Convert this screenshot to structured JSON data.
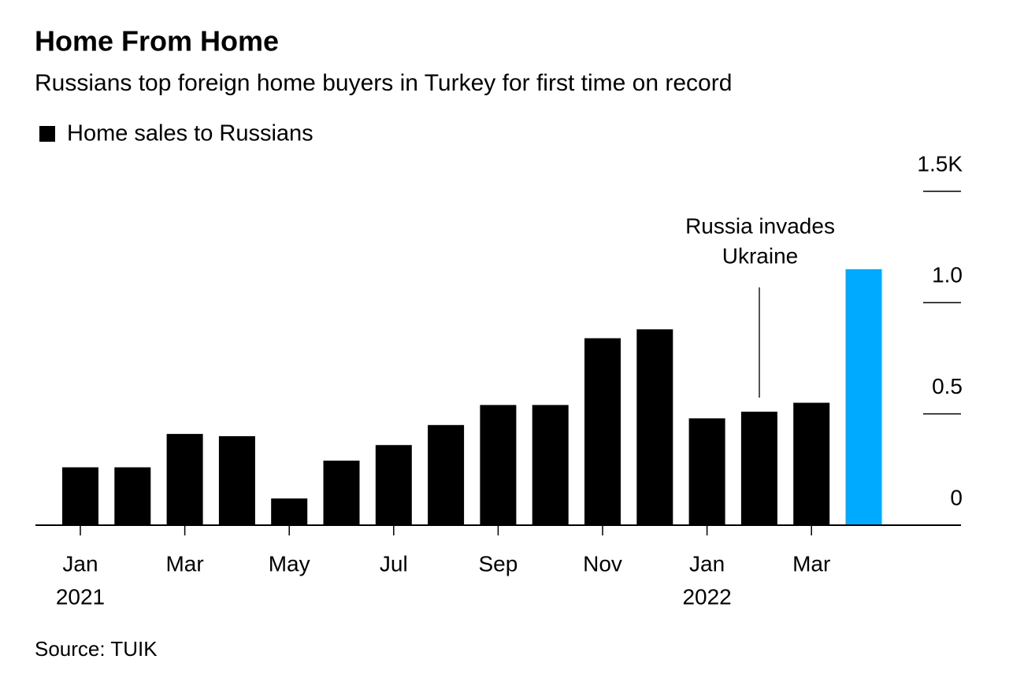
{
  "chart_data": {
    "type": "bar",
    "title": "Home From Home",
    "subtitle": "Russians top foreign home buyers in Turkey for first time on record",
    "source": "Source: TUIK",
    "series_name": "Home sales to Russians",
    "categories": [
      "Jan",
      null,
      "Mar",
      null,
      "May",
      null,
      "Jul",
      null,
      "Sep",
      null,
      "Nov",
      null,
      "Jan",
      null,
      "Mar",
      null
    ],
    "years": [
      "2021",
      null,
      null,
      null,
      null,
      null,
      null,
      null,
      null,
      null,
      null,
      null,
      "2022",
      null,
      null,
      null
    ],
    "values": [
      0.26,
      0.26,
      0.41,
      0.4,
      0.12,
      0.29,
      0.36,
      0.45,
      0.54,
      0.54,
      0.84,
      0.88,
      0.48,
      0.51,
      0.55,
      1.15
    ],
    "colors": [
      "#000000",
      "#000000",
      "#000000",
      "#000000",
      "#000000",
      "#000000",
      "#000000",
      "#000000",
      "#000000",
      "#000000",
      "#000000",
      "#000000",
      "#000000",
      "#000000",
      "#000000",
      "#00aaff"
    ],
    "legend_color": "#000000",
    "annotation": [
      "Russia invades",
      "Ukraine"
    ],
    "ylim": [
      0,
      1.5
    ],
    "yticks": [
      0,
      0.5,
      {
        "value": 1,
        "label": "1.0"
      },
      {
        "value": 1.5,
        "label": "1.5K"
      }
    ],
    "grid": false
  }
}
